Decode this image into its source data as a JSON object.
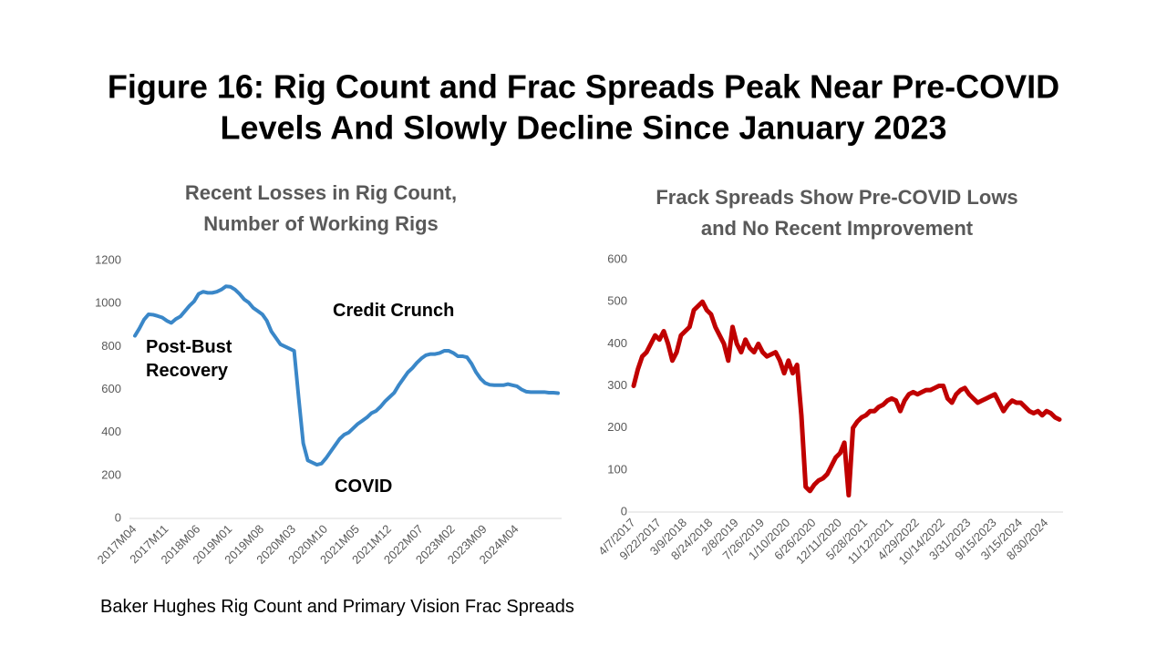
{
  "title": [
    "Figure 16: Rig Count and Frac Spreads Peak Near Pre-COVID",
    "Levels And Slowly Decline Since January 2023"
  ],
  "source": "Baker Hughes Rig Count and Primary Vision Frac Spreads",
  "chart_data": [
    {
      "type": "line",
      "title": [
        "Recent Losses in Rig Count,",
        "Number of Working Rigs"
      ],
      "annotations": [
        "Post-Bust Recovery",
        "Credit Crunch",
        "COVID"
      ],
      "color": "#3a87c8",
      "categories": [
        "2017M04",
        null,
        null,
        null,
        null,
        null,
        null,
        "2017M11",
        null,
        null,
        null,
        null,
        null,
        null,
        "2018M06",
        null,
        null,
        null,
        null,
        null,
        null,
        "2019M01",
        null,
        null,
        null,
        null,
        null,
        null,
        "2019M08",
        null,
        null,
        null,
        null,
        null,
        null,
        "2020M03",
        null,
        null,
        null,
        null,
        null,
        null,
        "2020M10",
        null,
        null,
        null,
        null,
        null,
        null,
        "2021M05",
        null,
        null,
        null,
        null,
        null,
        null,
        "2021M12",
        null,
        null,
        null,
        null,
        null,
        null,
        "2022M07",
        null,
        null,
        null,
        null,
        null,
        null,
        "2023M02",
        null,
        null,
        null,
        null,
        null,
        null,
        "2023M09",
        null,
        null,
        null,
        null,
        null,
        null,
        "2024M04",
        null,
        null,
        null,
        null,
        null,
        null,
        null,
        null,
        null
      ],
      "values": [
        850,
        885,
        925,
        950,
        948,
        942,
        935,
        920,
        910,
        928,
        940,
        965,
        990,
        1010,
        1045,
        1055,
        1050,
        1050,
        1055,
        1065,
        1080,
        1078,
        1065,
        1045,
        1020,
        1005,
        980,
        965,
        950,
        920,
        870,
        840,
        810,
        800,
        790,
        780,
        560,
        350,
        270,
        260,
        250,
        255,
        280,
        310,
        340,
        370,
        390,
        400,
        420,
        440,
        455,
        470,
        490,
        500,
        520,
        545,
        565,
        585,
        620,
        650,
        680,
        700,
        725,
        745,
        760,
        765,
        765,
        770,
        780,
        780,
        770,
        755,
        755,
        750,
        720,
        680,
        650,
        630,
        622,
        620,
        620,
        620,
        625,
        620,
        615,
        600,
        590,
        588,
        588,
        588,
        588,
        585,
        585,
        583
      ],
      "ylim": [
        0,
        1200
      ],
      "yticks": [
        0,
        200,
        400,
        600,
        800,
        1000,
        1200
      ],
      "grid": false
    },
    {
      "type": "line",
      "title": [
        "Frack Spreads Show Pre-COVID Lows",
        "and No Recent Improvement"
      ],
      "color": "#c00000",
      "categories": [
        "4/7/2017",
        null,
        null,
        null,
        null,
        null,
        "9/22/2017",
        null,
        null,
        null,
        null,
        null,
        "3/9/2018",
        null,
        null,
        null,
        null,
        null,
        "8/24/2018",
        null,
        null,
        null,
        null,
        null,
        "2/8/2019",
        null,
        null,
        null,
        null,
        null,
        "7/26/2019",
        null,
        null,
        null,
        null,
        null,
        "1/10/2020",
        null,
        null,
        null,
        null,
        null,
        "6/26/2020",
        null,
        null,
        null,
        null,
        null,
        "12/11/2020",
        null,
        null,
        null,
        null,
        null,
        "5/28/2021",
        null,
        null,
        null,
        null,
        null,
        "11/12/2021",
        null,
        null,
        null,
        null,
        null,
        "4/29/2022",
        null,
        null,
        null,
        null,
        null,
        "10/14/2022",
        null,
        null,
        null,
        null,
        null,
        "3/31/2023",
        null,
        null,
        null,
        null,
        null,
        "9/15/2023",
        null,
        null,
        null,
        null,
        null,
        "3/15/2024",
        null,
        null,
        null,
        null,
        null,
        "8/30/2024",
        null,
        null,
        null
      ],
      "values": [
        300,
        340,
        370,
        380,
        400,
        420,
        410,
        430,
        400,
        360,
        380,
        420,
        430,
        440,
        480,
        490,
        500,
        480,
        470,
        440,
        420,
        400,
        360,
        440,
        400,
        380,
        410,
        390,
        380,
        400,
        380,
        370,
        375,
        380,
        360,
        330,
        360,
        330,
        350,
        230,
        60,
        50,
        65,
        75,
        80,
        90,
        110,
        130,
        140,
        165,
        40,
        200,
        215,
        225,
        230,
        240,
        240,
        250,
        255,
        265,
        270,
        265,
        240,
        265,
        280,
        285,
        280,
        285,
        290,
        290,
        295,
        300,
        300,
        270,
        260,
        280,
        290,
        295,
        280,
        270,
        260,
        265,
        270,
        275,
        280,
        260,
        240,
        255,
        265,
        260,
        260,
        250,
        240,
        235,
        240,
        230,
        240,
        235,
        225,
        220
      ],
      "ylim": [
        0,
        600
      ],
      "yticks": [
        0,
        100,
        200,
        300,
        400,
        500,
        600
      ],
      "grid": false
    }
  ]
}
